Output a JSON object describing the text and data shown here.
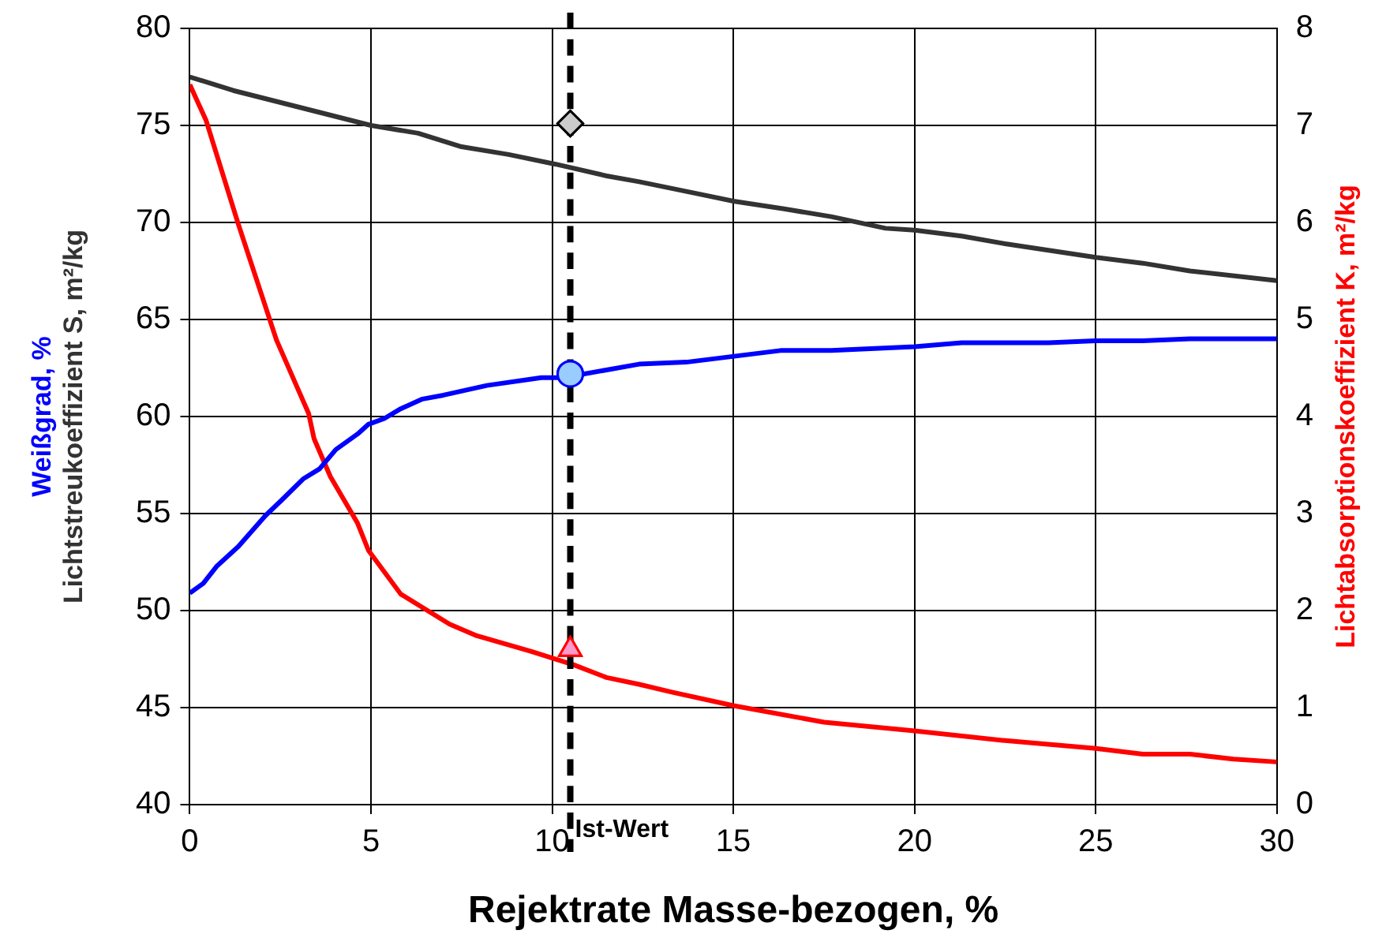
{
  "chart_data": {
    "type": "line",
    "xlabel": "Rejektrate Masse-bezogen, %",
    "ylabel": "Weißgrad, %\nLichtstreukoeffizient S, m²/kg",
    "y2label": "Lichtabsorptionskoeffizient K, m²/kg",
    "xlim": [
      0,
      30
    ],
    "xticks": [
      0,
      5,
      10,
      15,
      20,
      25,
      30
    ],
    "ylim": [
      40,
      80
    ],
    "yticks": [
      40,
      45,
      50,
      55,
      60,
      65,
      70,
      75,
      80
    ],
    "y2lim": [
      0,
      8
    ],
    "y2ticks": [
      0,
      1,
      2,
      3,
      4,
      5,
      6,
      7,
      8
    ],
    "grid": true,
    "legend": false,
    "marker": "none",
    "line_style": "solid",
    "series": [
      {
        "color": "#0000ff",
        "x": [
          0,
          0.37,
          0.75,
          1.34,
          2.09,
          2.54,
          3.14,
          3.58,
          4.03,
          4.63,
          4.93,
          5.37,
          5.82,
          6.42,
          7.0,
          8.2,
          9.7,
          10.3,
          11.5,
          12.4,
          13.7,
          16.3,
          17.7,
          20,
          21.3,
          23.7,
          25,
          26.3,
          27.6,
          30
        ],
        "values": [
          50.9,
          51.4,
          52.3,
          53.3,
          54.9,
          55.7,
          56.8,
          57.3,
          58.3,
          59.1,
          59.6,
          59.9,
          60.4,
          60.9,
          61.1,
          61.6,
          62.0,
          62.0,
          62.4,
          62.7,
          62.8,
          63.4,
          63.4,
          63.6,
          63.8,
          63.8,
          63.9,
          63.9,
          64.0,
          64.0
        ]
      },
      {
        "color": "#333333",
        "x": [
          0,
          1.2,
          5,
          6.3,
          7.5,
          8.8,
          10.1,
          11.5,
          12.4,
          13.7,
          15,
          16.4,
          17.7,
          19.2,
          20,
          21.3,
          22.5,
          25,
          26.3,
          27.6,
          30
        ],
        "values": [
          77.5,
          76.8,
          75.0,
          74.6,
          73.9,
          73.5,
          73.0,
          72.4,
          72.1,
          71.6,
          71.1,
          70.7,
          70.3,
          69.7,
          69.6,
          69.3,
          68.9,
          68.2,
          67.9,
          67.5,
          67.0
        ]
      },
      {
        "color": "#ff0000",
        "axis": "y2",
        "x": [
          0,
          0.45,
          1.34,
          2.39,
          3.28,
          3.43,
          3.88,
          4.63,
          4.93,
          5.82,
          7.17,
          7.92,
          9.41,
          10.6,
          11.5,
          12.4,
          13.3,
          15,
          17.5,
          20,
          22.5,
          25,
          26.3,
          27.6,
          28.8,
          30
        ],
        "values": [
          7.42,
          7.05,
          5.98,
          4.79,
          4.03,
          3.77,
          3.38,
          2.9,
          2.62,
          2.17,
          1.86,
          1.74,
          1.58,
          1.44,
          1.31,
          1.24,
          1.16,
          1.02,
          0.85,
          0.76,
          0.66,
          0.58,
          0.52,
          0.52,
          0.47,
          0.44
        ]
      },
      {
        "type": "scatter",
        "marker": "circle",
        "color": "#99ccff",
        "x": [
          10.5
        ],
        "values": [
          62.2
        ]
      },
      {
        "type": "scatter",
        "marker": "diamond",
        "color": "#cccccc",
        "x": [
          10.5
        ],
        "values": [
          75.1
        ]
      },
      {
        "type": "scatter",
        "marker": "triangle",
        "color": "#ff99cc",
        "axis": "y2",
        "x": [
          10.5
        ],
        "values": [
          1.6
        ]
      }
    ],
    "ref_lines": [
      {
        "axis": "x",
        "value": 10.5,
        "label": "Ist-Wert",
        "color": "#000000",
        "line_style": "dashed"
      }
    ]
  }
}
